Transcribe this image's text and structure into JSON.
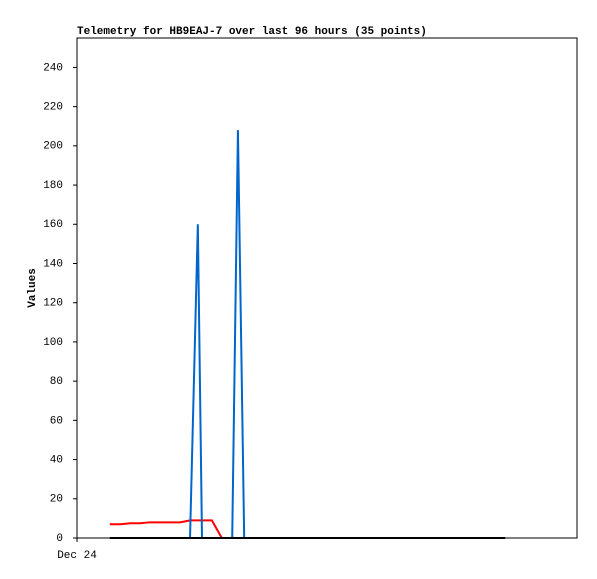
{
  "chart_data": {
    "type": "line",
    "title": "Telemetry for HB9EAJ-7 over last 96 hours (35 points)",
    "y_label": "Values",
    "x": [
      6.3,
      8.3,
      10.2,
      12.1,
      14.0,
      15.9,
      17.9,
      19.8,
      21.7,
      23.2,
      24.0,
      25.9,
      27.8,
      29.8,
      30.9,
      32.1,
      34.0,
      36.0,
      38.7,
      41.4,
      44.2,
      46.9,
      49.6,
      52.3,
      55.0,
      57.8,
      60.5,
      63.2,
      65.9,
      68.6,
      71.4,
      74.1,
      76.8,
      79.5,
      82.2
    ],
    "series": [
      {
        "color": "#ff0000",
        "values": [
          7,
          7,
          7.5,
          7.5,
          8,
          8,
          8,
          8,
          9,
          9,
          9,
          9,
          0,
          0,
          0,
          0,
          0,
          0,
          0,
          0,
          0,
          0,
          0,
          0,
          0,
          0,
          0,
          0,
          0,
          0,
          0,
          0,
          0,
          0,
          0
        ]
      },
      {
        "color": "#0066cc",
        "values": [
          0,
          0,
          0,
          0,
          0,
          0,
          0,
          0,
          0,
          160,
          0,
          0,
          0,
          0,
          208,
          0,
          0,
          0,
          0,
          0,
          0,
          0,
          0,
          0,
          0,
          0,
          0,
          0,
          0,
          0,
          0,
          0,
          0,
          0,
          0
        ]
      },
      {
        "color": "#000000",
        "values": [
          0,
          0,
          0,
          0,
          0,
          0,
          0,
          0,
          0,
          0,
          0,
          0,
          0,
          0,
          0,
          0,
          0,
          0,
          0,
          0,
          0,
          0,
          0,
          0,
          0,
          0,
          0,
          0,
          0,
          0,
          0,
          0,
          0,
          0,
          0
        ]
      }
    ],
    "xlim": [
      0,
      96
    ],
    "xticks": [
      {
        "value": 0,
        "label": "Dec 24"
      }
    ],
    "ylim": [
      0,
      255
    ],
    "yticks": [
      0,
      20,
      40,
      60,
      80,
      100,
      120,
      140,
      160,
      180,
      200,
      220,
      240
    ]
  }
}
